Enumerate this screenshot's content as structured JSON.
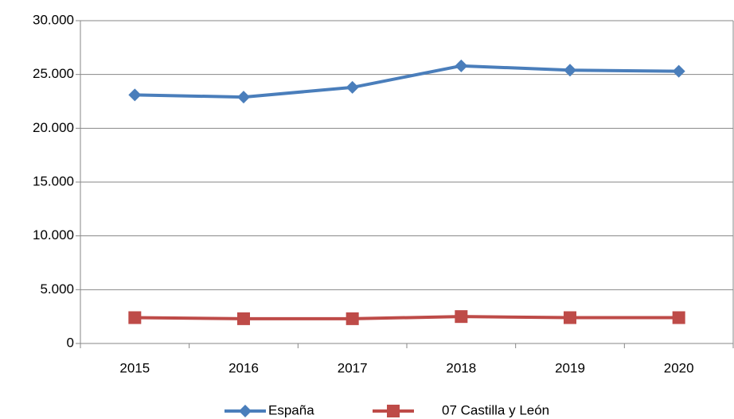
{
  "chart_data": {
    "type": "line",
    "categories": [
      "2015",
      "2016",
      "2017",
      "2018",
      "2019",
      "2020"
    ],
    "series": [
      {
        "name": "España",
        "color": "#4a7ebb",
        "marker": "diamond",
        "values": [
          23100,
          22900,
          23800,
          25800,
          25400,
          25300
        ]
      },
      {
        "name": "07 Castilla y León",
        "color": "#be4b48",
        "marker": "square",
        "values": [
          2400,
          2300,
          2300,
          2500,
          2400,
          2400
        ]
      }
    ],
    "ylim": [
      0,
      30000
    ],
    "yticks": [
      0,
      {
        "value": 5000,
        "label": "5.000"
      },
      {
        "value": 10000,
        "label": "10.000"
      },
      {
        "value": 15000,
        "label": "15.000"
      },
      {
        "value": 20000,
        "label": "20.000"
      },
      {
        "value": 25000,
        "label": "25.000"
      },
      {
        "value": 30000,
        "label": "30.000"
      }
    ],
    "grid": true,
    "legend": "bottom"
  }
}
